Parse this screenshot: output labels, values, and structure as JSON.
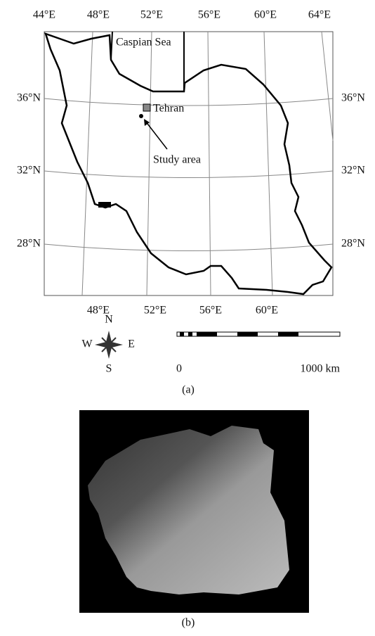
{
  "map": {
    "top_labels": [
      "44°E",
      "48°E",
      "52°E",
      "56°E",
      "60°E",
      "64°E"
    ],
    "left_labels": [
      "36°N",
      "32°N",
      "28°N"
    ],
    "right_labels": [
      "36°N",
      "32°N",
      "28°N"
    ],
    "bottom_labels": [
      "48°E",
      "52°E",
      "56°E",
      "60°E"
    ],
    "sea_label": "Caspian Sea",
    "city_label": "Tehran",
    "study_label": "Study area",
    "compass": {
      "n": "N",
      "e": "E",
      "s": "S",
      "w": "W"
    },
    "scale": {
      "start": "0",
      "end": "1000 km"
    },
    "caption": "(a)"
  },
  "image": {
    "caption": "(b)"
  }
}
